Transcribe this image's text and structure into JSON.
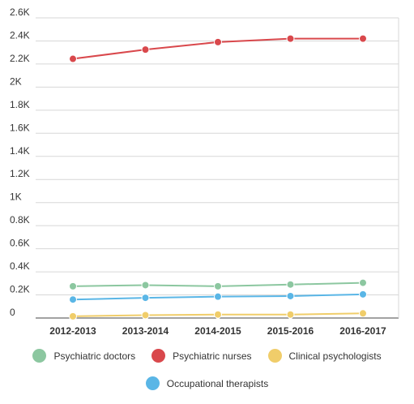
{
  "chart_data": {
    "type": "line",
    "categories": [
      "2012-2013",
      "2013-2014",
      "2014-2015",
      "2015-2016",
      "2016-2017"
    ],
    "y_ticks": [
      "0",
      "0.2K",
      "0.4K",
      "0.6K",
      "0.8K",
      "1K",
      "1.2K",
      "1.4K",
      "1.6K",
      "1.8K",
      "2K",
      "2.2K",
      "2.4K",
      "2.6K"
    ],
    "ylim": [
      0,
      2600
    ],
    "grid": true,
    "legend_position": "bottom",
    "series": [
      {
        "name": "Psychiatric doctors",
        "color": "#8cc7a0",
        "values": [
          275,
          285,
          275,
          290,
          305
        ]
      },
      {
        "name": "Psychiatric nurses",
        "color": "#d9484c",
        "values": [
          2245,
          2325,
          2390,
          2420,
          2420
        ]
      },
      {
        "name": "Clinical psychologists",
        "color": "#f0cd6a",
        "values": [
          15,
          25,
          30,
          30,
          40
        ]
      },
      {
        "name": "Occupational therapists",
        "color": "#5ab6e6",
        "values": [
          160,
          175,
          185,
          190,
          205
        ]
      }
    ]
  }
}
